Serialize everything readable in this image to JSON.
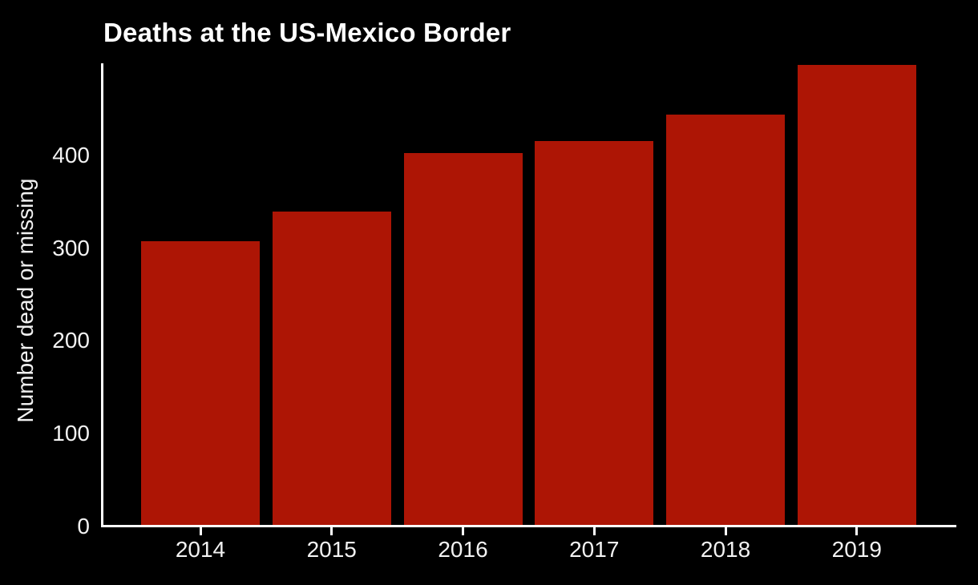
{
  "title": "Deaths at the US-Mexico Border",
  "chart_data": {
    "type": "bar",
    "title": "Deaths at the US-Mexico Border",
    "categories": [
      "2014",
      "2015",
      "2016",
      "2017",
      "2018",
      "2019"
    ],
    "values": [
      307,
      339,
      402,
      415,
      444,
      497
    ],
    "xlabel": "",
    "ylabel": "Number dead or missing",
    "yticks": [
      0,
      100,
      200,
      300,
      400
    ],
    "ylim": [
      0,
      500
    ],
    "grid": false,
    "legend_position": "none",
    "bar_color": "#AD1505",
    "background_color": "#000000",
    "axis_color": "#FFFFFF",
    "title_color": "#FFFFFF",
    "tick_label_color": "#F2F2F2"
  }
}
